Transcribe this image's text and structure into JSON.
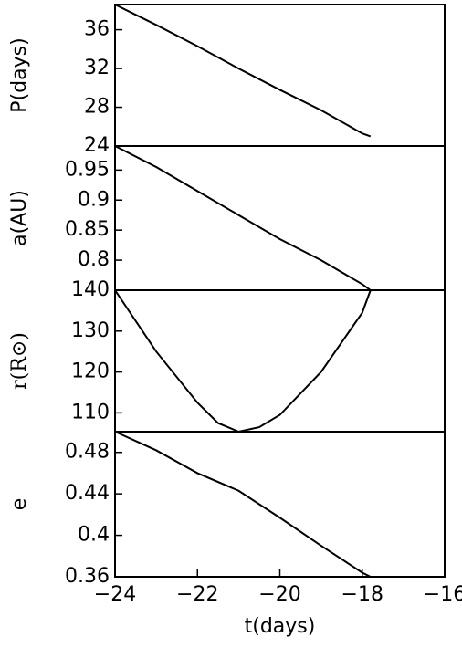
{
  "chart_data": [
    {
      "type": "line",
      "ylabel": "P(days)",
      "xlim": [
        -24,
        -16
      ],
      "ylim": [
        24,
        38.6
      ],
      "yticks": [
        24,
        28,
        32,
        36
      ],
      "color": "#000000",
      "x": [
        -24,
        -23,
        -22,
        -21,
        -20,
        -19,
        -18,
        -17.8
      ],
      "values": [
        38.6,
        36.5,
        34.3,
        32.0,
        29.8,
        27.7,
        25.3,
        25.0
      ]
    },
    {
      "type": "line",
      "ylabel": "a(AU)",
      "xlim": [
        -24,
        -16
      ],
      "ylim": [
        0.75,
        0.99
      ],
      "yticks": [
        0.8,
        0.85,
        0.9,
        0.95
      ],
      "color": "#000000",
      "x": [
        -24,
        -23,
        -22,
        -21,
        -20,
        -19,
        -18,
        -17.8
      ],
      "values": [
        0.99,
        0.955,
        0.915,
        0.875,
        0.835,
        0.8,
        0.76,
        0.75
      ]
    },
    {
      "type": "line",
      "ylabel": "r(R⊙)",
      "xlim": [
        -24,
        -16
      ],
      "ylim": [
        105.4,
        140
      ],
      "yticks": [
        110,
        120,
        130,
        140
      ],
      "color": "#000000",
      "x": [
        -24,
        -23,
        -22,
        -21.5,
        -21,
        -20.5,
        -20,
        -19,
        -18,
        -17.8
      ],
      "values": [
        140,
        125,
        112.5,
        107.5,
        105.4,
        106.5,
        109.5,
        120,
        134.5,
        140
      ]
    },
    {
      "type": "line",
      "ylabel": "e",
      "xlabel": "t(days)",
      "xlim": [
        -24,
        -16
      ],
      "ylim": [
        0.36,
        0.5
      ],
      "xticks": [
        {
          "value": -24,
          "label": "−24"
        },
        {
          "value": -22,
          "label": "−22"
        },
        {
          "value": -20,
          "label": "−20"
        },
        {
          "value": -18,
          "label": "−18"
        },
        {
          "value": -16,
          "label": "−16"
        }
      ],
      "yticks": [
        0.36,
        0.4,
        0.44,
        0.48
      ],
      "color": "#000000",
      "x": [
        -24,
        -23,
        -22,
        -21,
        -20,
        -19,
        -18,
        -17.8
      ],
      "values": [
        0.5,
        0.482,
        0.46,
        0.443,
        0.417,
        0.39,
        0.364,
        0.36
      ]
    }
  ]
}
